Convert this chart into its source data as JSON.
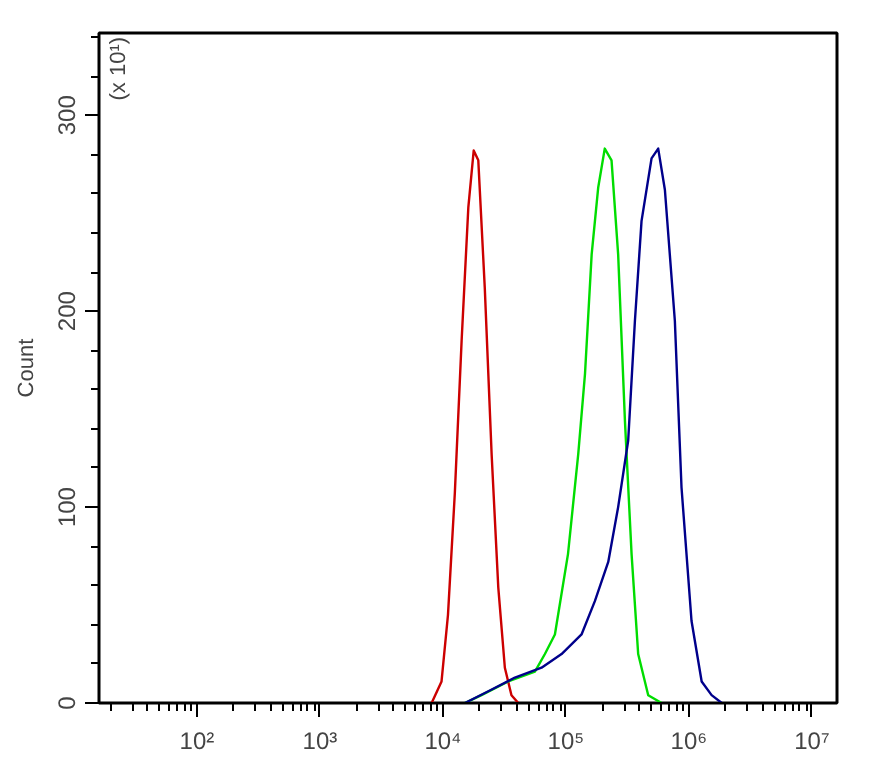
{
  "chart_data": {
    "type": "line",
    "ylabel": "Count",
    "annotations": [
      "(x 10¹)"
    ],
    "log": "x",
    "xlim": [
      16,
      16000000
    ],
    "ylim": [
      0,
      342
    ],
    "xticks": [
      {
        "value": 20,
        "label": null
      },
      {
        "value": 30,
        "label": null
      },
      {
        "value": 40,
        "label": null
      },
      {
        "value": 50,
        "label": null
      },
      {
        "value": 60,
        "label": null
      },
      {
        "value": 70,
        "label": null
      },
      {
        "value": 80,
        "label": null
      },
      {
        "value": 90,
        "label": null
      },
      {
        "value": 100,
        "label": "10²"
      },
      {
        "value": 200,
        "label": null
      },
      {
        "value": 300,
        "label": null
      },
      {
        "value": 400,
        "label": null
      },
      {
        "value": 500,
        "label": null
      },
      {
        "value": 600,
        "label": null
      },
      {
        "value": 700,
        "label": null
      },
      {
        "value": 800,
        "label": null
      },
      {
        "value": 900,
        "label": null
      },
      {
        "value": 1000,
        "label": "10³"
      },
      {
        "value": 2000,
        "label": null
      },
      {
        "value": 3000,
        "label": null
      },
      {
        "value": 4000,
        "label": null
      },
      {
        "value": 5000,
        "label": null
      },
      {
        "value": 6000,
        "label": null
      },
      {
        "value": 7000,
        "label": null
      },
      {
        "value": 8000,
        "label": null
      },
      {
        "value": 9000,
        "label": null
      },
      {
        "value": 10000,
        "label": "10⁴"
      },
      {
        "value": 20000,
        "label": null
      },
      {
        "value": 30000,
        "label": null
      },
      {
        "value": 40000,
        "label": null
      },
      {
        "value": 50000,
        "label": null
      },
      {
        "value": 60000,
        "label": null
      },
      {
        "value": 70000,
        "label": null
      },
      {
        "value": 80000,
        "label": null
      },
      {
        "value": 90000,
        "label": null
      },
      {
        "value": 100000,
        "label": "10⁵"
      },
      {
        "value": 200000,
        "label": null
      },
      {
        "value": 300000,
        "label": null
      },
      {
        "value": 400000,
        "label": null
      },
      {
        "value": 500000,
        "label": null
      },
      {
        "value": 600000,
        "label": null
      },
      {
        "value": 700000,
        "label": null
      },
      {
        "value": 800000,
        "label": null
      },
      {
        "value": 900000,
        "label": null
      },
      {
        "value": 1000000,
        "label": "10⁶"
      },
      {
        "value": 2000000,
        "label": null
      },
      {
        "value": 3000000,
        "label": null
      },
      {
        "value": 4000000,
        "label": null
      },
      {
        "value": 5000000,
        "label": null
      },
      {
        "value": 6000000,
        "label": null
      },
      {
        "value": 7000000,
        "label": null
      },
      {
        "value": 8000000,
        "label": null
      },
      {
        "value": 9000000,
        "label": null
      },
      {
        "value": 10000000,
        "label": "10⁷"
      }
    ],
    "yticks": [
      0,
      {
        "value": 20,
        "label": null
      },
      {
        "value": 40,
        "label": null
      },
      {
        "value": 60,
        "label": null
      },
      {
        "value": 80,
        "label": null
      },
      100,
      {
        "value": 120,
        "label": null
      },
      {
        "value": 140,
        "label": null
      },
      {
        "value": 160,
        "label": null
      },
      {
        "value": 180,
        "label": null
      },
      200,
      {
        "value": 220,
        "label": null
      },
      {
        "value": 240,
        "label": null
      },
      {
        "value": 260,
        "label": null
      },
      {
        "value": 280,
        "label": null
      },
      300,
      {
        "value": 320,
        "label": null
      },
      {
        "value": 340,
        "label": null
      }
    ],
    "grid": false,
    "marker": "none",
    "line_style": "solid",
    "series": [
      {
        "color": "#cc0000",
        "x": [
          8100,
          9750,
          11000,
          12500,
          14200,
          16100,
          17800,
          19400,
          21900,
          24900,
          28200,
          31900,
          36100,
          41000
        ],
        "values": [
          0,
          11,
          45,
          107,
          185,
          253,
          282,
          277,
          212,
          127,
          59,
          18,
          4,
          0
        ]
      },
      {
        "color": "#00dd00",
        "x": [
          15100,
          20600,
          34000,
          56000,
          67500,
          81400,
          104000,
          126000,
          143000,
          162000,
          183000,
          207000,
          235000,
          266000,
          302000,
          342000,
          387000,
          467000,
          600000
        ],
        "values": [
          0,
          4,
          11,
          16,
          25,
          35,
          76,
          127,
          168,
          229,
          263,
          283,
          277,
          229,
          144,
          76,
          25,
          4,
          0
        ]
      },
      {
        "color": "#00008b",
        "x": [
          15100,
          23400,
          38500,
          63400,
          92200,
          134000,
          172000,
          221000,
          266000,
          321000,
          364000,
          412000,
          497000,
          563000,
          638000,
          769000,
          871000,
          1050000,
          1270000,
          1530000,
          1850000
        ],
        "values": [
          0,
          6,
          13,
          18,
          25,
          35,
          52,
          72,
          100,
          134,
          195,
          246,
          278,
          283,
          262,
          195,
          110,
          42,
          11,
          4,
          0
        ]
      }
    ]
  }
}
